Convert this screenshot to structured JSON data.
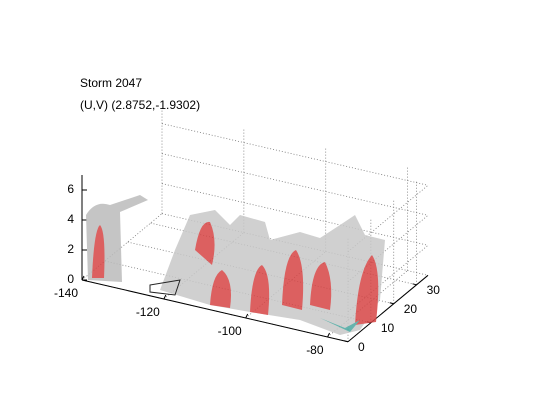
{
  "chart_data": {
    "type": "volume3d",
    "title": "Storm 2047",
    "subtitle": "(U,V) (2.8752,-1.9302)",
    "xlim": [
      -140,
      -75
    ],
    "xticks": [
      -140,
      -120,
      -100,
      -80
    ],
    "ylim": [
      0,
      35
    ],
    "yticks": [
      0,
      10,
      20,
      30
    ],
    "zlim": [
      0,
      7
    ],
    "zticks": [
      0,
      2,
      4,
      6
    ],
    "grid": true
  }
}
